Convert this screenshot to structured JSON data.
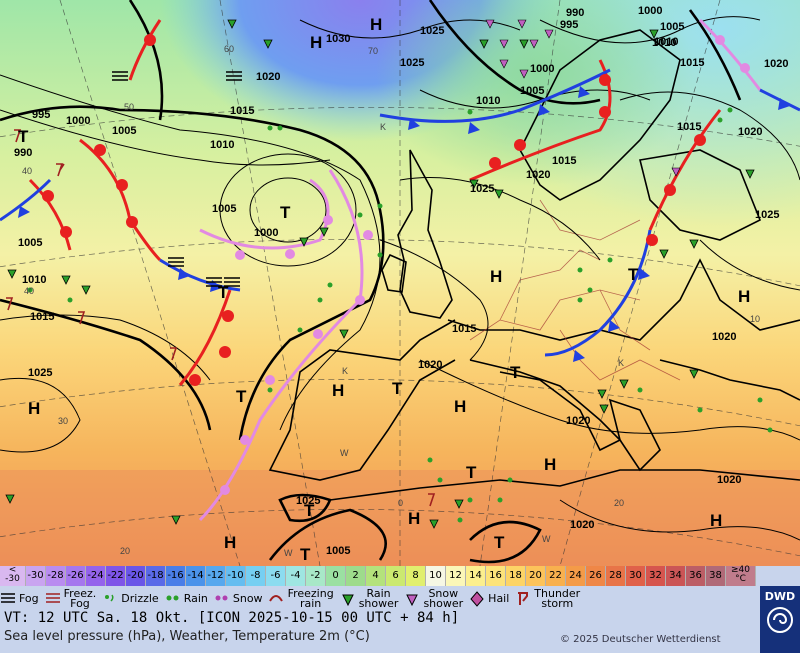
{
  "scale": {
    "values": [
      "<\n-30",
      "-30",
      "-28",
      "-26",
      "-24",
      "-22",
      "-20",
      "-18",
      "-16",
      "-14",
      "-12",
      "-10",
      "-8",
      "-6",
      "-4",
      "-2",
      "0",
      "2",
      "4",
      "6",
      "8",
      "10",
      "12",
      "14",
      "16",
      "18",
      "20",
      "22",
      "24",
      "26",
      "28",
      "30",
      "32",
      "34",
      "36",
      "38",
      "≥40\n°C"
    ],
    "colors": [
      "#d9b8f0",
      "#c9a4f0",
      "#b98cf0",
      "#a577ee",
      "#9463ec",
      "#7f55e8",
      "#6a56e8",
      "#5a6ae8",
      "#4a7ee8",
      "#4b93ea",
      "#57a8ee",
      "#65bdf0",
      "#76cff2",
      "#8cdcf0",
      "#9fe6e2",
      "#a8e8c8",
      "#9be0a2",
      "#9edb8c",
      "#b4e27c",
      "#cbe970",
      "#e1ef6e",
      "#f6f7e4",
      "#fbf7b8",
      "#fcef8e",
      "#fde37a",
      "#fdd466",
      "#fcc35a",
      "#f8b04e",
      "#f49b48",
      "#ef8747",
      "#e87448",
      "#e0614a",
      "#d6554e",
      "#cb5556",
      "#bc5e66",
      "#b06a78",
      "#c07c8c"
    ]
  },
  "weather_legend": [
    {
      "icon": "fog-icon",
      "label": "Fog"
    },
    {
      "icon": "freezing-fog-icon",
      "label": "Freez.\nFog"
    },
    {
      "icon": "drizzle-icon",
      "label": "Drizzle"
    },
    {
      "icon": "rain-icon",
      "label": "Rain"
    },
    {
      "icon": "snow-icon",
      "label": "Snow"
    },
    {
      "icon": "freezing-rain-icon",
      "label": "Freezing\nrain"
    },
    {
      "icon": "rain-shower-icon",
      "label": "Rain\nshower"
    },
    {
      "icon": "snow-shower-icon",
      "label": "Snow\nshower"
    },
    {
      "icon": "hail-icon",
      "label": "Hail"
    },
    {
      "icon": "thunderstorm-icon",
      "label": "Thunder\nstorm"
    }
  ],
  "valid_time": "VT: 12 UTC Sa.  18 Okt. [ICON 2025-10-15  00 UTC + 84 h]",
  "description": "Sea level pressure (hPa), Weather, Temperature 2m (°C)",
  "copyright": "© 2025 Deutscher Wetterdienst",
  "logo_text": "DWD",
  "map": {
    "isobar_labels": [
      "1030",
      "990",
      "995",
      "1000",
      "1005",
      "1010",
      "1015",
      "1020",
      "1025",
      "1000",
      "1005",
      "1010",
      "1025",
      "1010",
      "1015",
      "1005",
      "1000",
      "1015",
      "1020",
      "1010",
      "1000",
      "1005",
      "1010",
      "1005",
      "1015",
      "1020",
      "1020",
      "1025",
      "1020",
      "1025",
      "1015",
      "1015",
      "1020",
      "1020",
      "1020",
      "1020",
      "1025",
      "995",
      "990",
      "1005",
      "1025"
    ],
    "pressure_centers": [
      {
        "type": "H",
        "label": "H"
      },
      {
        "type": "H",
        "label": "H"
      },
      {
        "type": "H",
        "label": "H"
      },
      {
        "type": "H",
        "label": "H"
      },
      {
        "type": "H",
        "label": "H"
      },
      {
        "type": "H",
        "label": "H"
      },
      {
        "type": "H",
        "label": "H"
      },
      {
        "type": "H",
        "label": "H"
      },
      {
        "type": "H",
        "label": "H"
      },
      {
        "type": "H",
        "label": "H"
      },
      {
        "type": "H",
        "label": "H"
      },
      {
        "type": "T",
        "label": "T"
      },
      {
        "type": "T",
        "label": "T"
      },
      {
        "type": "T",
        "label": "T"
      },
      {
        "type": "T",
        "label": "T"
      },
      {
        "type": "T",
        "label": "T"
      },
      {
        "type": "T",
        "label": "T"
      },
      {
        "type": "T",
        "label": "T"
      },
      {
        "type": "T",
        "label": "T"
      },
      {
        "type": "T",
        "label": "T"
      },
      {
        "type": "T",
        "label": "T"
      },
      {
        "type": "T",
        "label": "T"
      }
    ],
    "temp_labels": [
      "60",
      "50",
      "40",
      "40",
      "30",
      "20",
      "20",
      "10",
      "0",
      "70",
      "K",
      "K",
      "K",
      "W",
      "W",
      "W"
    ]
  }
}
